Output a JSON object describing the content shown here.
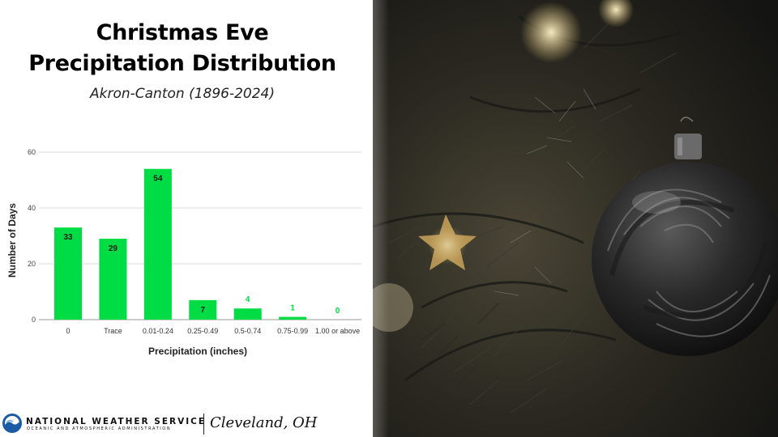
{
  "title_line1": "Christmas Eve",
  "title_line2": "Precipitation Distribution",
  "subtitle": "Akron-Canton (1896-2024)",
  "chart_data": {
    "type": "bar",
    "categories": [
      "0",
      "Trace",
      "0.01-0.24",
      "0.25-0.49",
      "0.5-0.74",
      "0.75-0.99",
      "1.00 or above"
    ],
    "values": [
      33,
      29,
      54,
      7,
      4,
      1,
      0
    ],
    "data_labels": [
      "33",
      "29",
      "54",
      "7",
      "4",
      "1",
      "0"
    ],
    "xlabel": "Precipitation (inches)",
    "ylabel": "Number of Days",
    "ylim": [
      0,
      60
    ],
    "yticks": [
      0,
      20,
      40,
      60
    ],
    "grid": true,
    "legend": "none",
    "bar_color": "#00dd44",
    "gridline_color": "#d9d9d9"
  },
  "footer": {
    "org_name": "NATIONAL WEATHER SERVICE",
    "org_sub": "OCEANIC AND ATMOSPHERIC ADMINISTRATION",
    "office": "Cleveland, OH"
  },
  "photo": {
    "description_icon": "christmas-ornament-photo",
    "ornament_color": "#1c1c1c",
    "light_color": "#e8c77a"
  }
}
